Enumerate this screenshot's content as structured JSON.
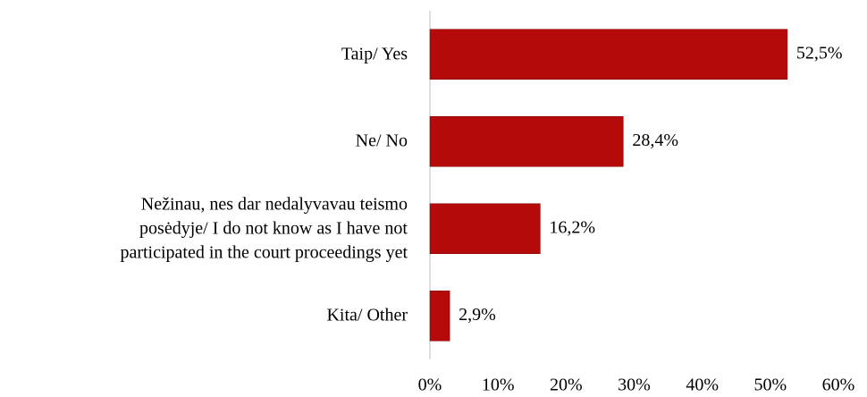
{
  "chart_data": {
    "type": "bar",
    "orientation": "horizontal",
    "categories": [
      "Taip/ Yes",
      "Ne/ No",
      "Nežinau, nes dar nedalyvavau teismo\nposėdyje/ I do not know as I have not\nparticipated in the court proceedings yet",
      "Kita/ Other"
    ],
    "values": [
      52.5,
      28.4,
      16.2,
      2.9
    ],
    "value_labels": [
      "52,5%",
      "28,4%",
      "16,2%",
      "2,9%"
    ],
    "color": "#b40a0a",
    "xlim": [
      0,
      60
    ],
    "xticks": [
      {
        "value": 0,
        "label": "0%"
      },
      {
        "value": 10,
        "label": "10%"
      },
      {
        "value": 20,
        "label": "20%"
      },
      {
        "value": 30,
        "label": "30%"
      },
      {
        "value": 40,
        "label": "40%"
      },
      {
        "value": 50,
        "label": "50%"
      },
      {
        "value": 60,
        "label": "60%"
      }
    ],
    "grid": false
  }
}
